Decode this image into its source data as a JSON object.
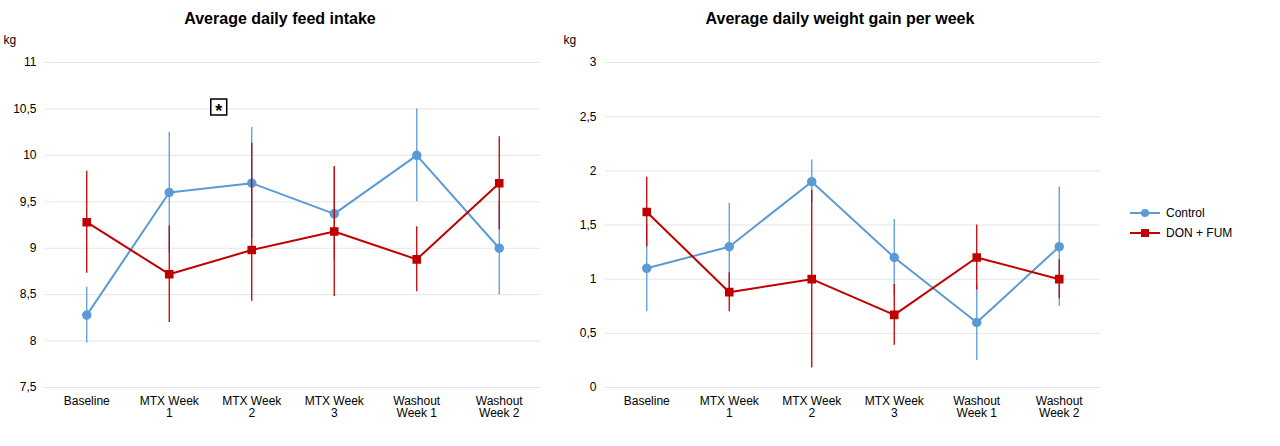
{
  "chart_data": [
    {
      "type": "line",
      "title": "Average daily feed intake",
      "y_label": "kg",
      "categories": [
        "Baseline",
        "MTX Week\n1",
        "MTX Week\n2",
        "MTX Week\n3",
        "Washout\nWeek 1",
        "Washout\nWeek 2"
      ],
      "ylim": [
        7.5,
        11
      ],
      "yticks": [
        {
          "value": 7.5,
          "label": "7,5"
        },
        8,
        {
          "value": 8.5,
          "label": "8,5"
        },
        9,
        {
          "value": 9.5,
          "label": "9,5"
        },
        10,
        {
          "value": 10.5,
          "label": "10,5"
        },
        11
      ],
      "grid": true,
      "series": [
        {
          "name": "Control",
          "color": "#5B9BD5",
          "marker": "circle",
          "values": [
            8.28,
            9.6,
            9.7,
            9.37,
            10.0,
            9.0
          ],
          "error_low": [
            0.3,
            0.65,
            0.6,
            0.5,
            0.5,
            0.5
          ],
          "error_high": [
            0.3,
            0.65,
            0.6,
            0.5,
            0.5,
            0.5
          ]
        },
        {
          "name": "DON + FUM",
          "color": "#C00000",
          "marker": "square",
          "values": [
            9.28,
            8.72,
            8.98,
            9.18,
            8.88,
            9.7
          ],
          "error_low": [
            0.55,
            0.52,
            0.55,
            0.7,
            0.35,
            0.5
          ],
          "error_high": [
            0.55,
            0.52,
            1.15,
            0.7,
            0.35,
            0.5
          ]
        }
      ],
      "annotations": [
        {
          "text": "*",
          "x": 1.6,
          "y": 10.52
        }
      ]
    },
    {
      "type": "line",
      "title": "Average daily weight gain per week",
      "y_label": "kg",
      "categories": [
        "Baseline",
        "MTX Week\n1",
        "MTX Week\n2",
        "MTX Week\n3",
        "Washout\nWeek 1",
        "Washout\nWeek 2"
      ],
      "ylim": [
        0,
        3
      ],
      "yticks": [
        0,
        {
          "value": 0.5,
          "label": "0,5"
        },
        1,
        {
          "value": 1.5,
          "label": "1,5"
        },
        2,
        {
          "value": 2.5,
          "label": "2,5"
        },
        3
      ],
      "grid": true,
      "legend": "right",
      "series": [
        {
          "name": "Control",
          "color": "#5B9BD5",
          "marker": "circle",
          "values": [
            1.1,
            1.3,
            1.9,
            1.2,
            0.6,
            1.3
          ],
          "error_low": [
            0.4,
            0.4,
            0.2,
            0.35,
            0.35,
            0.55
          ],
          "error_high": [
            0.4,
            0.4,
            0.2,
            0.35,
            0.35,
            0.55
          ]
        },
        {
          "name": "DON + FUM",
          "color": "#C00000",
          "marker": "square",
          "values": [
            1.62,
            0.88,
            1.0,
            0.67,
            1.2,
            1.0
          ],
          "error_low": [
            0.32,
            0.18,
            0.82,
            0.28,
            0.3,
            0.18
          ],
          "error_high": [
            0.32,
            0.18,
            0.82,
            0.28,
            0.3,
            0.18
          ]
        }
      ]
    }
  ]
}
